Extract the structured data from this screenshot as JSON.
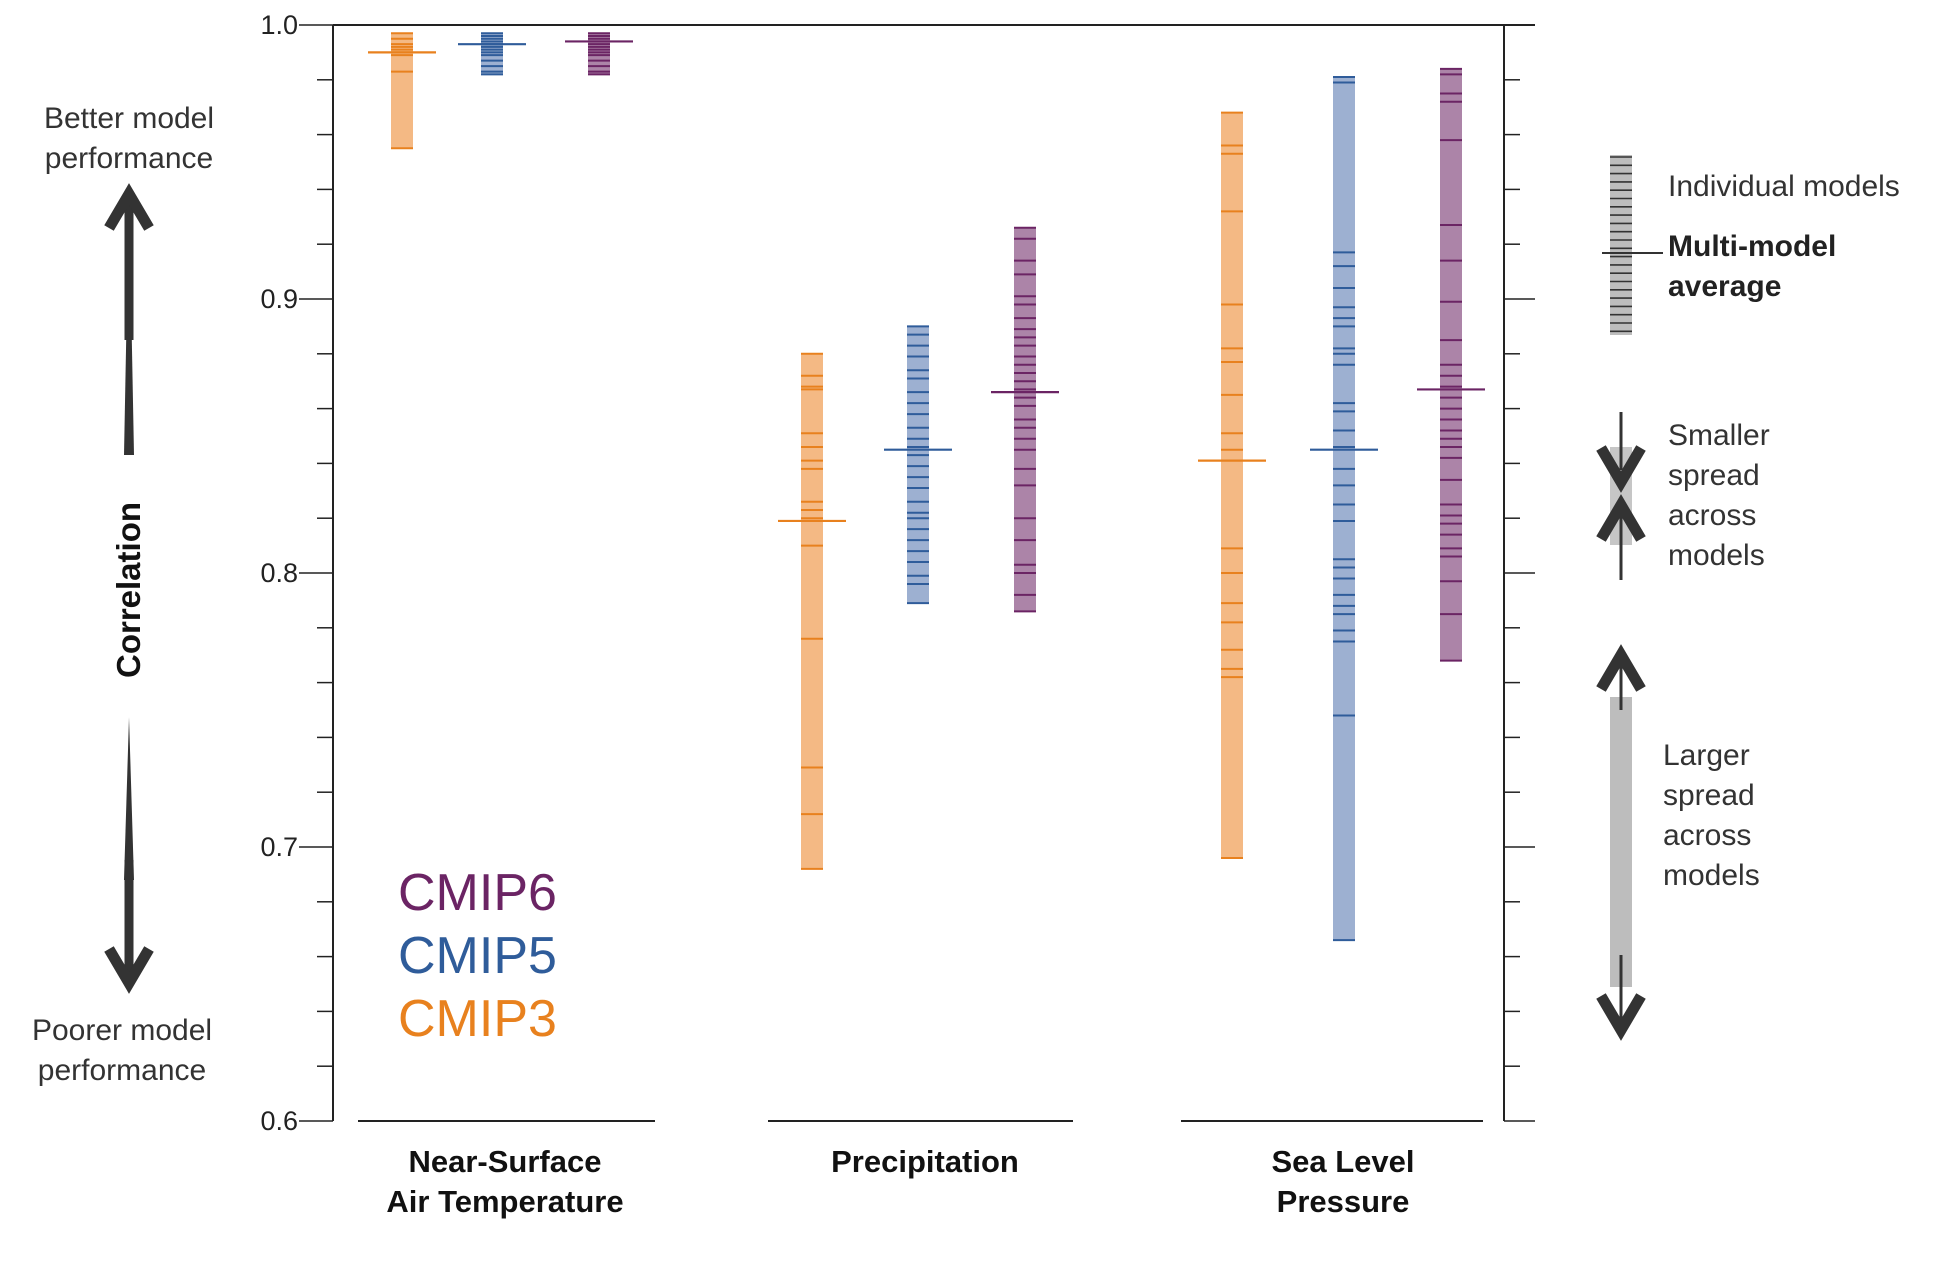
{
  "chart_data": {
    "type": "strip",
    "ylabel": "Correlation",
    "ylim": [
      0.6,
      1.0
    ],
    "yticks": [
      "0.6",
      "0.7",
      "0.8",
      "0.9",
      "1.0"
    ],
    "categories": [
      "Near-Surface\nAir Temperature",
      "Precipitation",
      "Sea Level\nPressure"
    ],
    "category_lines": [
      [
        "Near-Surface",
        "Air Temperature"
      ],
      [
        "Precipitation"
      ],
      [
        "Sea Level",
        "Pressure"
      ]
    ],
    "better_label": [
      "Better model",
      "performance"
    ],
    "poorer_label": [
      "Poorer model",
      "performance"
    ],
    "series": [
      {
        "name": "CMIP3",
        "color": "#E8811E",
        "fill": "#F4B984",
        "data": [
          {
            "min": 0.955,
            "max": 0.997,
            "mean": 0.99,
            "models": [
              0.997,
              0.995,
              0.993,
              0.992,
              0.991,
              0.99,
              0.989,
              0.983,
              0.955
            ]
          },
          {
            "min": 0.692,
            "max": 0.88,
            "mean": 0.819,
            "models": [
              0.88,
              0.872,
              0.868,
              0.867,
              0.851,
              0.846,
              0.841,
              0.838,
              0.826,
              0.823,
              0.82,
              0.81,
              0.776,
              0.729,
              0.712,
              0.692
            ]
          },
          {
            "min": 0.696,
            "max": 0.968,
            "mean": 0.841,
            "models": [
              0.968,
              0.956,
              0.953,
              0.932,
              0.898,
              0.882,
              0.877,
              0.865,
              0.851,
              0.845,
              0.809,
              0.8,
              0.789,
              0.782,
              0.772,
              0.765,
              0.762,
              0.696
            ]
          }
        ]
      },
      {
        "name": "CMIP5",
        "color": "#2F5C9A",
        "fill": "#9DB0D1",
        "data": [
          {
            "min": 0.982,
            "max": 0.997,
            "mean": 0.993,
            "models": [
              0.997,
              0.996,
              0.995,
              0.994,
              0.993,
              0.992,
              0.991,
              0.99,
              0.989,
              0.987,
              0.985,
              0.983,
              0.982
            ]
          },
          {
            "min": 0.789,
            "max": 0.89,
            "mean": 0.845,
            "models": [
              0.89,
              0.887,
              0.883,
              0.879,
              0.874,
              0.871,
              0.866,
              0.862,
              0.858,
              0.853,
              0.849,
              0.846,
              0.843,
              0.839,
              0.835,
              0.831,
              0.826,
              0.822,
              0.82,
              0.816,
              0.812,
              0.808,
              0.804,
              0.799,
              0.796,
              0.789
            ]
          },
          {
            "min": 0.666,
            "max": 0.981,
            "mean": 0.845,
            "models": [
              0.981,
              0.979,
              0.917,
              0.912,
              0.904,
              0.897,
              0.893,
              0.89,
              0.882,
              0.88,
              0.876,
              0.862,
              0.859,
              0.852,
              0.846,
              0.838,
              0.832,
              0.825,
              0.819,
              0.805,
              0.802,
              0.798,
              0.792,
              0.788,
              0.785,
              0.779,
              0.775,
              0.748,
              0.666
            ]
          }
        ]
      },
      {
        "name": "CMIP6",
        "color": "#6B2464",
        "fill": "#AC84A8",
        "data": [
          {
            "min": 0.982,
            "max": 0.997,
            "mean": 0.994,
            "models": [
              0.997,
              0.996,
              0.995,
              0.994,
              0.993,
              0.992,
              0.991,
              0.99,
              0.989,
              0.987,
              0.985,
              0.983,
              0.982
            ]
          },
          {
            "min": 0.786,
            "max": 0.926,
            "mean": 0.866,
            "models": [
              0.926,
              0.922,
              0.914,
              0.909,
              0.901,
              0.898,
              0.893,
              0.889,
              0.886,
              0.883,
              0.879,
              0.876,
              0.873,
              0.87,
              0.867,
              0.864,
              0.861,
              0.856,
              0.853,
              0.849,
              0.845,
              0.838,
              0.832,
              0.82,
              0.812,
              0.803,
              0.8,
              0.792,
              0.786
            ]
          },
          {
            "min": 0.768,
            "max": 0.984,
            "mean": 0.867,
            "models": [
              0.984,
              0.982,
              0.975,
              0.972,
              0.958,
              0.927,
              0.914,
              0.899,
              0.885,
              0.876,
              0.872,
              0.868,
              0.864,
              0.86,
              0.856,
              0.852,
              0.849,
              0.846,
              0.842,
              0.834,
              0.825,
              0.821,
              0.818,
              0.814,
              0.809,
              0.806,
              0.797,
              0.785,
              0.768
            ]
          }
        ]
      }
    ],
    "legend_order": [
      "CMIP6",
      "CMIP5",
      "CMIP3"
    ],
    "key": {
      "individual": "Individual models",
      "average": [
        "Multi-model",
        "average"
      ],
      "smaller": [
        "Smaller",
        "spread",
        "across",
        "models"
      ],
      "larger": [
        "Larger",
        "spread",
        "across",
        "models"
      ]
    }
  }
}
